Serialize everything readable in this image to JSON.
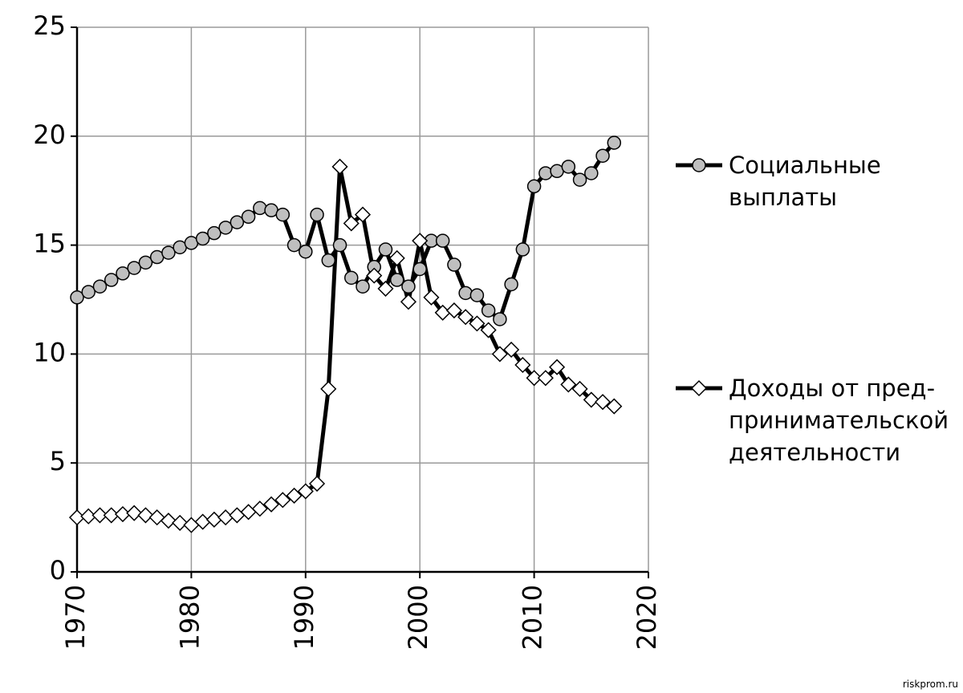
{
  "chart_data": {
    "type": "line",
    "xlim": [
      1970,
      2020
    ],
    "xticks": [
      1970,
      1980,
      1990,
      2000,
      2010,
      2020
    ],
    "ylim": [
      0,
      25
    ],
    "yticks": [
      0,
      5,
      10,
      15,
      20,
      25
    ],
    "grid": true,
    "x": [
      1970,
      1971,
      1972,
      1973,
      1974,
      1975,
      1976,
      1977,
      1978,
      1979,
      1980,
      1981,
      1982,
      1983,
      1984,
      1985,
      1986,
      1987,
      1988,
      1989,
      1990,
      1991,
      1992,
      1993,
      1994,
      1995,
      1996,
      1997,
      1998,
      1999,
      2000,
      2001,
      2002,
      2003,
      2004,
      2005,
      2006,
      2007,
      2008,
      2009,
      2010,
      2011,
      2012,
      2013,
      2014,
      2015,
      2016,
      2017
    ],
    "series": [
      {
        "name": "Социальные выплаты",
        "color": "#000000",
        "marker": "circle",
        "marker_fill": "#bfbfbf",
        "values": [
          12.6,
          12.85,
          13.1,
          13.4,
          13.7,
          13.95,
          14.2,
          14.45,
          14.65,
          14.9,
          15.1,
          15.3,
          15.55,
          15.8,
          16.05,
          16.3,
          16.7,
          16.6,
          16.4,
          15.0,
          14.7,
          16.4,
          14.3,
          15.0,
          13.5,
          13.1,
          14.0,
          14.8,
          13.4,
          13.1,
          13.9,
          15.2,
          15.2,
          14.1,
          12.8,
          12.7,
          12.0,
          11.6,
          13.2,
          14.8,
          17.7,
          18.3,
          18.4,
          18.6,
          18.0,
          18.3,
          19.1,
          19.7
        ]
      },
      {
        "name": "Доходы от пред-принимательской деятельности",
        "color": "#000000",
        "marker": "diamond",
        "marker_fill": "#ffffff",
        "values": [
          2.5,
          2.55,
          2.6,
          2.6,
          2.65,
          2.7,
          2.6,
          2.5,
          2.35,
          2.25,
          2.15,
          2.3,
          2.4,
          2.5,
          2.6,
          2.75,
          2.9,
          3.1,
          3.3,
          3.5,
          3.7,
          4.05,
          8.4,
          18.6,
          16.0,
          16.4,
          13.6,
          13.0,
          14.4,
          12.4,
          15.2,
          12.6,
          11.9,
          12.0,
          11.7,
          11.4,
          11.1,
          10.0,
          10.2,
          9.5,
          8.9,
          8.9,
          9.4,
          8.6,
          8.4,
          7.9,
          7.8,
          7.6
        ]
      }
    ],
    "watermark": "riskprom.ru"
  }
}
